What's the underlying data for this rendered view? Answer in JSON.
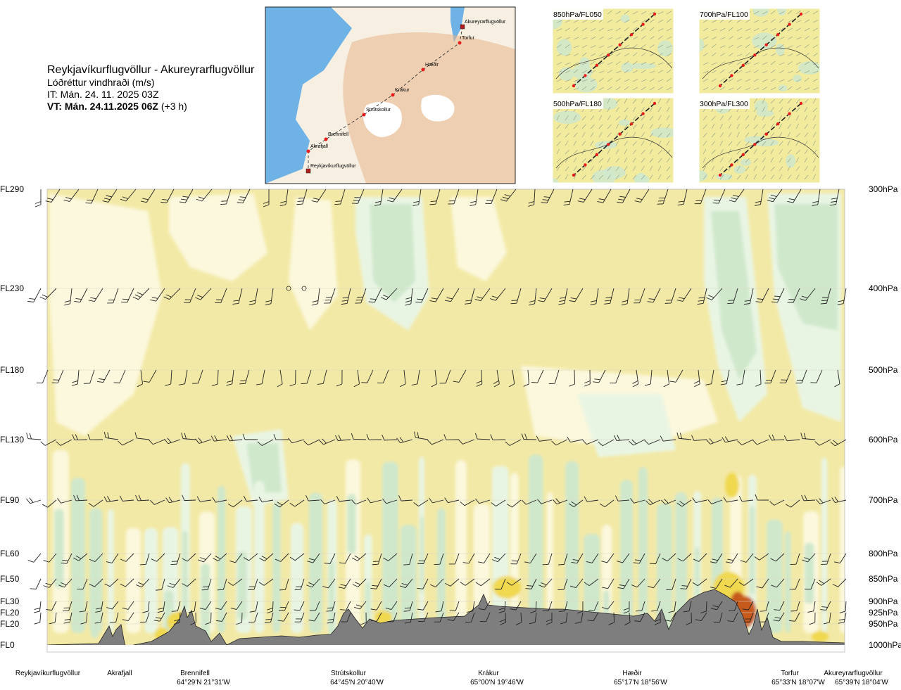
{
  "header": {
    "route": "Reykjavíkurflugvöllur - Akureyrarflugvöllur",
    "parameter": "Lóðréttur vindhraði (m/s)",
    "issue_time": "IT: Mán. 24. 11. 2025 03Z",
    "valid_time_bold": "VT: Mán. 24.11.2025 06Z",
    "valid_time_offset": "(+3 h)"
  },
  "inset_map": {
    "stations": [
      "Akureyrarflugvöllur",
      "Torfur",
      "Hæðir",
      "Krákur",
      "Strútskollur",
      "Brennifell",
      "Akrafjall",
      "Reykjavíkurflugvöllur"
    ],
    "colors": {
      "sea": "#6fb3e6",
      "land_low": "#f6efe2",
      "land_high": "#e8b48a",
      "ice": "#ffffff",
      "route": "#222222",
      "station": "#e81d1d"
    }
  },
  "level_maps": [
    {
      "label": "850hPa/FL050"
    },
    {
      "label": "700hPa/FL100"
    },
    {
      "label": "500hPa/FL180"
    },
    {
      "label": "300hPa/FL300"
    }
  ],
  "chart_data": {
    "type": "heatmap",
    "title": "Lóðréttur vindhraði (m/s)",
    "x_stations": [
      {
        "name": "Reykjavíkurflugvöllur",
        "coord": ""
      },
      {
        "name": "Akrafjall",
        "coord": ""
      },
      {
        "name": "Brennifell",
        "coord": "64°29'N 21°31'W"
      },
      {
        "name": "Strútskollur",
        "coord": "64°45'N 20°40'W"
      },
      {
        "name": "Krákur",
        "coord": "65°00'N 19°46'W"
      },
      {
        "name": "Hæðir",
        "coord": "65°17'N 18°56'W"
      },
      {
        "name": "Torfur",
        "coord": "65°33'N 18°07'W"
      },
      {
        "name": "Akureyrarflugvöllur",
        "coord": "65°39'N 18°04'W"
      }
    ],
    "y_levels": [
      {
        "fl": "FL290",
        "hpa": "300hPa"
      },
      {
        "fl": "FL230",
        "hpa": "400hPa"
      },
      {
        "fl": "FL180",
        "hpa": "500hPa"
      },
      {
        "fl": "FL130",
        "hpa": "600hPa"
      },
      {
        "fl": "FL90",
        "hpa": "700hPa"
      },
      {
        "fl": "FL60",
        "hpa": "800hPa"
      },
      {
        "fl": "FL50",
        "hpa": "850hPa"
      },
      {
        "fl": "FL30",
        "hpa": "900hPa"
      },
      {
        "fl": "FL20",
        "hpa": "925hPa"
      },
      {
        "fl": "FL20",
        "hpa": "950hPa"
      },
      {
        "fl": "FL0",
        "hpa": "1000hPa"
      }
    ],
    "y_scale": "pressure",
    "ylim_hpa": [
      1000,
      300
    ],
    "colors": {
      "background": "#f3e9a6",
      "weak_positive": "#fbf8dd",
      "near_zero": "#e9f5e3",
      "descending": "#cfe8cc",
      "strong_descending": "#a9d3a8",
      "ascending": "#f0d850",
      "strong_ascending": "#c65a1a",
      "terrain": "#7e7e7e"
    },
    "grid": true,
    "legend": "none"
  }
}
